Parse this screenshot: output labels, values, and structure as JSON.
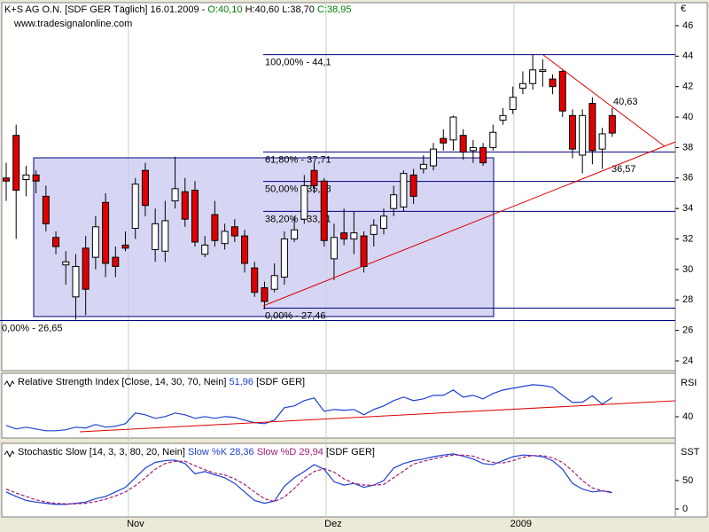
{
  "header": {
    "symbol": "K+S AG O.N. [SDF GER  Täglich] 16.01.2009",
    "open": "O:40,10",
    "high": "H:40,60",
    "low": "L:38,70",
    "close": "C:38,95",
    "source": "www.tradesignalonline.com"
  },
  "chart_data": [
    {
      "type": "candlestick",
      "unit": "€",
      "open": [
        36.0,
        38.8,
        35.9,
        36.2,
        34.8,
        32.1,
        30.3,
        28.2,
        31.4,
        30.8,
        34.4,
        30.8,
        31.6,
        32.7,
        36.5,
        31.3,
        31.2,
        34.5,
        35.1,
        35.2,
        31.0,
        33.6,
        31.7,
        32.8,
        32.2,
        30.1,
        28.8,
        28.7,
        29.5,
        32.0,
        33.3,
        36.5,
        35.8,
        30.7,
        32.4,
        32.0,
        32.2,
        32.3,
        32.7,
        34.0,
        34.1,
        36.2,
        36.6,
        36.8,
        38.6,
        38.5,
        38.8,
        37.8,
        38.0,
        38.0,
        39.8,
        40.5,
        41.9,
        42.2,
        43.0,
        42.5,
        43.0,
        40.1,
        37.5,
        40.9,
        37.9,
        40.1
      ],
      "high": [
        37.0,
        39.5,
        36.8,
        36.5,
        35.5,
        32.5,
        31.2,
        31.0,
        32.2,
        33.5,
        35.0,
        31.5,
        32.5,
        36.0,
        37.0,
        34.0,
        34.5,
        37.4,
        36.0,
        35.8,
        32.2,
        34.5,
        33.0,
        33.3,
        32.6,
        30.5,
        29.2,
        30.4,
        32.5,
        33.5,
        36.2,
        37.0,
        36.0,
        33.0,
        34.0,
        33.8,
        32.5,
        33.3,
        34.0,
        35.5,
        36.5,
        36.6,
        37.5,
        38.3,
        39.2,
        40.1,
        39.2,
        38.5,
        38.3,
        39.5,
        40.6,
        42.0,
        43.0,
        44.1,
        43.8,
        42.8,
        43.1,
        40.5,
        40.5,
        41.3,
        39.3,
        40.6
      ],
      "low": [
        34.5,
        32.0,
        34.8,
        35.0,
        32.5,
        31.0,
        29.0,
        26.7,
        27.0,
        30.0,
        29.5,
        29.5,
        31.2,
        32.0,
        33.5,
        30.5,
        30.5,
        34.0,
        32.8,
        31.5,
        30.8,
        31.5,
        31.3,
        31.8,
        29.8,
        28.2,
        27.4,
        28.5,
        29.0,
        31.8,
        33.0,
        35.0,
        31.5,
        29.3,
        31.6,
        31.0,
        29.8,
        31.5,
        32.3,
        33.5,
        33.8,
        34.3,
        36.3,
        36.5,
        37.8,
        37.8,
        37.2,
        37.0,
        36.8,
        37.8,
        39.5,
        40.2,
        41.5,
        41.8,
        42.0,
        41.5,
        40.0,
        37.3,
        36.3,
        36.9,
        36.6,
        38.7
      ],
      "close": [
        35.8,
        35.2,
        36.2,
        35.8,
        33.0,
        31.5,
        30.5,
        30.2,
        28.7,
        32.8,
        30.4,
        30.2,
        31.4,
        35.6,
        34.2,
        33.0,
        33.2,
        35.3,
        33.3,
        31.8,
        31.6,
        31.9,
        32.5,
        32.2,
        30.4,
        28.5,
        27.9,
        29.6,
        32.0,
        32.6,
        35.5,
        35.5,
        31.9,
        32.1,
        32.0,
        32.4,
        30.2,
        32.9,
        33.5,
        34.9,
        36.3,
        34.8,
        36.9,
        37.9,
        38.3,
        40.0,
        37.7,
        38.0,
        37.0,
        39.0,
        40.1,
        41.3,
        42.2,
        43.1,
        43.1,
        42.0,
        40.4,
        37.9,
        40.1,
        37.8,
        38.9,
        38.95
      ],
      "up_color": "#ffffff",
      "down_color": "#e00000",
      "xlim": [
        -0.446,
        67.35
      ],
      "xticks": [
        {
          "value": 12.3,
          "label": "Nov"
        },
        {
          "value": 32.2,
          "label": "Dez"
        },
        {
          "value": 51.1,
          "label": "2009"
        }
      ],
      "ylim": [
        23.36,
        47.51
      ],
      "yticks": [
        24,
        26,
        28,
        30,
        32,
        34,
        36,
        38,
        40,
        42,
        44,
        46
      ],
      "annotations": [
        {
          "value": 44.1,
          "label": "100,00% - 44,1"
        },
        {
          "value": 37.71,
          "label": "61,80% - 37,71"
        },
        {
          "value": 35.78,
          "label": "50,00% - 35,78"
        },
        {
          "value": 33.81,
          "label": "38,20% - 33,81"
        },
        {
          "value": 27.46,
          "label": "0,00% - 27,46"
        },
        {
          "value": 26.65,
          "label": "0,00% - 26,65"
        }
      ],
      "trend_labels": [
        {
          "value": 40.63,
          "label": "40,63"
        },
        {
          "value": 36.57,
          "label": "36,57"
        }
      ]
    },
    {
      "type": "line",
      "title": "Relative Strength Index [Close, 14, 30, 70, Nein]",
      "last_label": "51,96",
      "source": "[SDF GER]",
      "label": "RSI",
      "xlim": [
        -0.446,
        67.35
      ],
      "ylim": [
        26.78,
        66.99
      ],
      "yticks": [
        40
      ],
      "series": [
        {
          "color": "#1f3fd0",
          "values": [
            34.6,
            32.4,
            33.5,
            32.4,
            31.3,
            31.3,
            31.9,
            33.5,
            33.0,
            35.2,
            33.5,
            34.1,
            35.7,
            42.3,
            41.2,
            39.0,
            40.1,
            42.3,
            41.2,
            39.0,
            40.1,
            39.0,
            40.1,
            39.6,
            37.9,
            36.3,
            35.7,
            37.9,
            45.6,
            46.7,
            50.0,
            51.7,
            43.4,
            44.5,
            44.0,
            44.5,
            41.2,
            44.5,
            46.7,
            50.0,
            52.2,
            50.0,
            51.1,
            53.3,
            53.3,
            56.6,
            52.2,
            53.3,
            51.1,
            54.4,
            56.6,
            57.7,
            58.8,
            59.9,
            59.4,
            58.3,
            53.3,
            48.9,
            49.0,
            53.0,
            47.8,
            51.96
          ]
        }
      ]
    },
    {
      "type": "line",
      "title": "Stochastic Slow [14, 3, 3, 80, 20, Nein]",
      "source": "[SDF GER]",
      "label": "SST",
      "xlim": [
        -0.446,
        67.35
      ],
      "ylim": [
        -14.06,
        115.6
      ],
      "yticks": [
        0,
        50
      ],
      "series": [
        {
          "name": "Slow %K 28,36",
          "color": "#1f3fd0",
          "values": [
            30,
            22,
            15,
            12,
            10,
            8,
            8,
            10,
            12,
            18,
            22,
            30,
            38,
            55,
            72,
            82,
            85,
            86,
            80,
            62,
            66,
            60,
            55,
            45,
            30,
            15,
            10,
            14,
            40,
            55,
            66,
            78,
            70,
            48,
            42,
            45,
            38,
            42,
            50,
            72,
            80,
            85,
            88,
            92,
            95,
            97,
            93,
            88,
            80,
            78,
            85,
            92,
            95,
            94,
            92,
            85,
            70,
            45,
            35,
            30,
            32,
            28.36
          ]
        },
        {
          "name": "Slow %D 29,94",
          "color": "#a0207a",
          "dash": true,
          "values": [
            35,
            28,
            22,
            16,
            12,
            10,
            9,
            9,
            10,
            13,
            17,
            23,
            30,
            41,
            55,
            70,
            80,
            84,
            84,
            76,
            69,
            63,
            60,
            53,
            43,
            30,
            18,
            13,
            21,
            36,
            54,
            66,
            71,
            65,
            53,
            45,
            42,
            42,
            43,
            55,
            67,
            79,
            84,
            88,
            92,
            95,
            95,
            93,
            87,
            82,
            81,
            85,
            91,
            94,
            94,
            90,
            82,
            67,
            50,
            37,
            32,
            29.94
          ]
        }
      ]
    }
  ]
}
